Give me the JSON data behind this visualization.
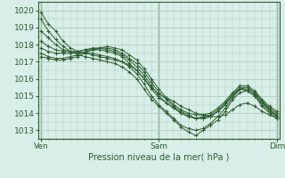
{
  "background_color": "#d8eee8",
  "plot_bg_color": "#d8eee8",
  "grid_color": "#b0ccbb",
  "line_color": "#2d5e30",
  "ylim": [
    1012.5,
    1020.5
  ],
  "yticks": [
    1013,
    1014,
    1015,
    1016,
    1017,
    1018,
    1019,
    1020
  ],
  "xlabel": "Pression niveau de la mer( hPa )",
  "xlabel_fontsize": 7,
  "xtick_labels": [
    "Ven",
    "Sam",
    "Dim"
  ],
  "xtick_positions": [
    0,
    48,
    96
  ],
  "xlim": [
    -1,
    97
  ],
  "series": [
    {
      "x": [
        0,
        3,
        6,
        9,
        12,
        15,
        18,
        21,
        24,
        27,
        30,
        33,
        36,
        39,
        42,
        45,
        48,
        51,
        54,
        57,
        60,
        63,
        66,
        69,
        72,
        75,
        78,
        81,
        84,
        87,
        90,
        93,
        96
      ],
      "y": [
        1019.9,
        1019.2,
        1018.8,
        1018.2,
        1017.8,
        1017.6,
        1017.5,
        1017.4,
        1017.3,
        1017.2,
        1017.1,
        1017.0,
        1016.8,
        1016.5,
        1016.0,
        1015.5,
        1015.1,
        1014.9,
        1014.7,
        1014.4,
        1014.2,
        1014.0,
        1013.9,
        1013.8,
        1013.8,
        1013.9,
        1014.2,
        1014.5,
        1014.6,
        1014.4,
        1014.1,
        1013.9,
        1013.7
      ]
    },
    {
      "x": [
        0,
        3,
        6,
        9,
        12,
        15,
        18,
        21,
        24,
        27,
        30,
        33,
        36,
        39,
        42,
        45,
        48,
        51,
        54,
        57,
        60,
        63,
        66,
        69,
        72,
        75,
        78,
        81,
        84,
        87,
        90,
        93,
        96
      ],
      "y": [
        1019.5,
        1018.8,
        1018.3,
        1017.9,
        1017.6,
        1017.4,
        1017.3,
        1017.2,
        1017.1,
        1017.0,
        1016.9,
        1016.7,
        1016.4,
        1016.0,
        1015.4,
        1014.8,
        1014.4,
        1014.0,
        1013.6,
        1013.2,
        1012.9,
        1012.7,
        1013.0,
        1013.3,
        1013.6,
        1014.1,
        1014.8,
        1015.2,
        1015.3,
        1015.0,
        1014.4,
        1014.0,
        1013.7
      ]
    },
    {
      "x": [
        0,
        3,
        6,
        9,
        12,
        15,
        18,
        21,
        24,
        27,
        30,
        33,
        36,
        39,
        42,
        45,
        48,
        51,
        54,
        57,
        60,
        63,
        66,
        69,
        72,
        75,
        78,
        81,
        84,
        87,
        90,
        93,
        96
      ],
      "y": [
        1018.8,
        1018.4,
        1018.0,
        1017.7,
        1017.6,
        1017.5,
        1017.5,
        1017.5,
        1017.4,
        1017.3,
        1017.2,
        1017.0,
        1016.7,
        1016.3,
        1015.7,
        1015.0,
        1014.5,
        1014.1,
        1013.7,
        1013.3,
        1013.1,
        1013.0,
        1013.1,
        1013.4,
        1013.8,
        1014.3,
        1014.9,
        1015.4,
        1015.5,
        1015.2,
        1014.7,
        1014.2,
        1013.8
      ]
    },
    {
      "x": [
        0,
        3,
        6,
        9,
        12,
        15,
        18,
        21,
        24,
        27,
        30,
        33,
        36,
        39,
        42,
        45,
        48,
        51,
        54,
        57,
        60,
        63,
        66,
        69,
        72,
        75,
        78,
        81,
        84,
        87,
        90,
        93,
        96
      ],
      "y": [
        1018.2,
        1017.9,
        1017.7,
        1017.6,
        1017.6,
        1017.6,
        1017.7,
        1017.7,
        1017.7,
        1017.6,
        1017.5,
        1017.3,
        1016.9,
        1016.5,
        1016.0,
        1015.4,
        1014.9,
        1014.6,
        1014.3,
        1014.0,
        1013.8,
        1013.7,
        1013.7,
        1013.8,
        1014.1,
        1014.5,
        1015.1,
        1015.4,
        1015.3,
        1015.0,
        1014.5,
        1014.1,
        1013.8
      ]
    },
    {
      "x": [
        0,
        3,
        6,
        9,
        12,
        15,
        18,
        21,
        24,
        27,
        30,
        33,
        36,
        39,
        42,
        45,
        48,
        51,
        54,
        57,
        60,
        63,
        66,
        69,
        72,
        75,
        78,
        81,
        84,
        87,
        90,
        93,
        96
      ],
      "y": [
        1017.8,
        1017.6,
        1017.5,
        1017.5,
        1017.5,
        1017.6,
        1017.7,
        1017.8,
        1017.8,
        1017.7,
        1017.6,
        1017.4,
        1017.1,
        1016.7,
        1016.2,
        1015.6,
        1015.0,
        1014.6,
        1014.3,
        1014.0,
        1013.8,
        1013.7,
        1013.7,
        1013.8,
        1014.1,
        1014.5,
        1015.0,
        1015.4,
        1015.4,
        1015.1,
        1014.6,
        1014.2,
        1013.9
      ]
    },
    {
      "x": [
        0,
        3,
        6,
        9,
        12,
        15,
        18,
        21,
        24,
        27,
        30,
        33,
        36,
        39,
        42,
        45,
        48,
        51,
        54,
        57,
        60,
        63,
        66,
        69,
        72,
        75,
        78,
        81,
        84,
        87,
        90,
        93,
        96
      ],
      "y": [
        1017.5,
        1017.3,
        1017.2,
        1017.2,
        1017.3,
        1017.4,
        1017.6,
        1017.7,
        1017.8,
        1017.8,
        1017.7,
        1017.5,
        1017.2,
        1016.9,
        1016.4,
        1015.8,
        1015.2,
        1014.8,
        1014.4,
        1014.1,
        1013.9,
        1013.7,
        1013.8,
        1013.9,
        1014.2,
        1014.6,
        1015.1,
        1015.5,
        1015.5,
        1015.2,
        1014.7,
        1014.3,
        1014.0
      ]
    },
    {
      "x": [
        0,
        3,
        6,
        9,
        12,
        15,
        18,
        21,
        24,
        27,
        30,
        33,
        36,
        39,
        42,
        45,
        48,
        51,
        54,
        57,
        60,
        63,
        66,
        69,
        72,
        75,
        78,
        81,
        84,
        87,
        90,
        93,
        96
      ],
      "y": [
        1017.3,
        1017.2,
        1017.1,
        1017.1,
        1017.2,
        1017.3,
        1017.5,
        1017.7,
        1017.8,
        1017.9,
        1017.8,
        1017.7,
        1017.4,
        1017.1,
        1016.6,
        1016.0,
        1015.4,
        1014.9,
        1014.5,
        1014.2,
        1014.0,
        1013.9,
        1013.9,
        1014.0,
        1014.3,
        1014.7,
        1015.2,
        1015.6,
        1015.6,
        1015.3,
        1014.8,
        1014.4,
        1014.1
      ]
    }
  ]
}
